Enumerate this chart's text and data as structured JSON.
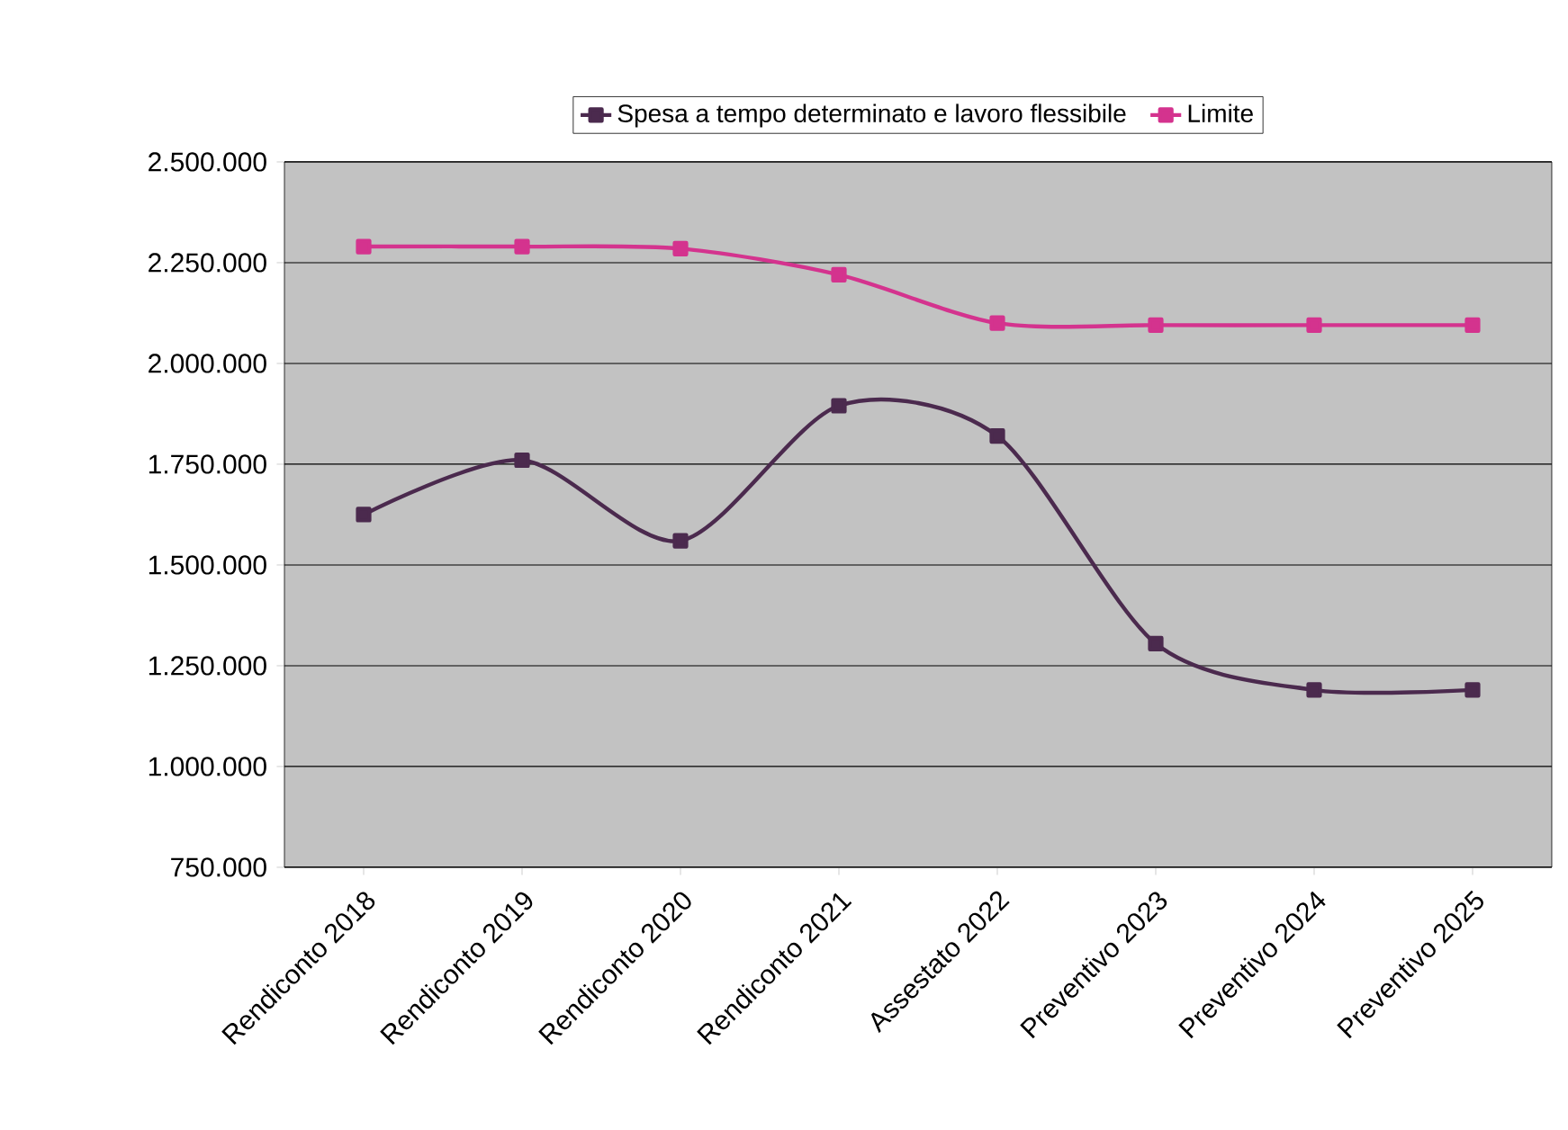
{
  "chart_data": {
    "type": "line",
    "categories": [
      "Rendiconto 2018",
      "Rendiconto 2019",
      "Rendiconto 2020",
      "Rendiconto 2021",
      "Assestato 2022",
      "Preventivo 2023",
      "Preventivo 2024",
      "Preventivo 2025"
    ],
    "series": [
      {
        "name": "Spesa a tempo determinato e lavoro flessibile",
        "color": "#4b2a4e",
        "values": [
          1625000,
          1760000,
          1560000,
          1895000,
          1820000,
          1305000,
          1190000,
          1190000
        ]
      },
      {
        "name": "Limite",
        "color": "#d4338e",
        "values": [
          2290000,
          2290000,
          2285000,
          2220000,
          2100000,
          2095000,
          2095000,
          2095000
        ]
      }
    ],
    "ylim": [
      750000,
      2500000
    ],
    "yticks": [
      {
        "value": 750000,
        "label": "750.000"
      },
      {
        "value": 1000000,
        "label": "1.000.000"
      },
      {
        "value": 1250000,
        "label": "1.250.000"
      },
      {
        "value": 1500000,
        "label": "1.500.000"
      },
      {
        "value": 1750000,
        "label": "1.750.000"
      },
      {
        "value": 2000000,
        "label": "2.000.000"
      },
      {
        "value": 2250000,
        "label": "2.250.000"
      },
      {
        "value": 2500000,
        "label": "2.500.000"
      }
    ],
    "grid": "y",
    "legend": "top",
    "marker": "square",
    "line_style": "solid"
  }
}
